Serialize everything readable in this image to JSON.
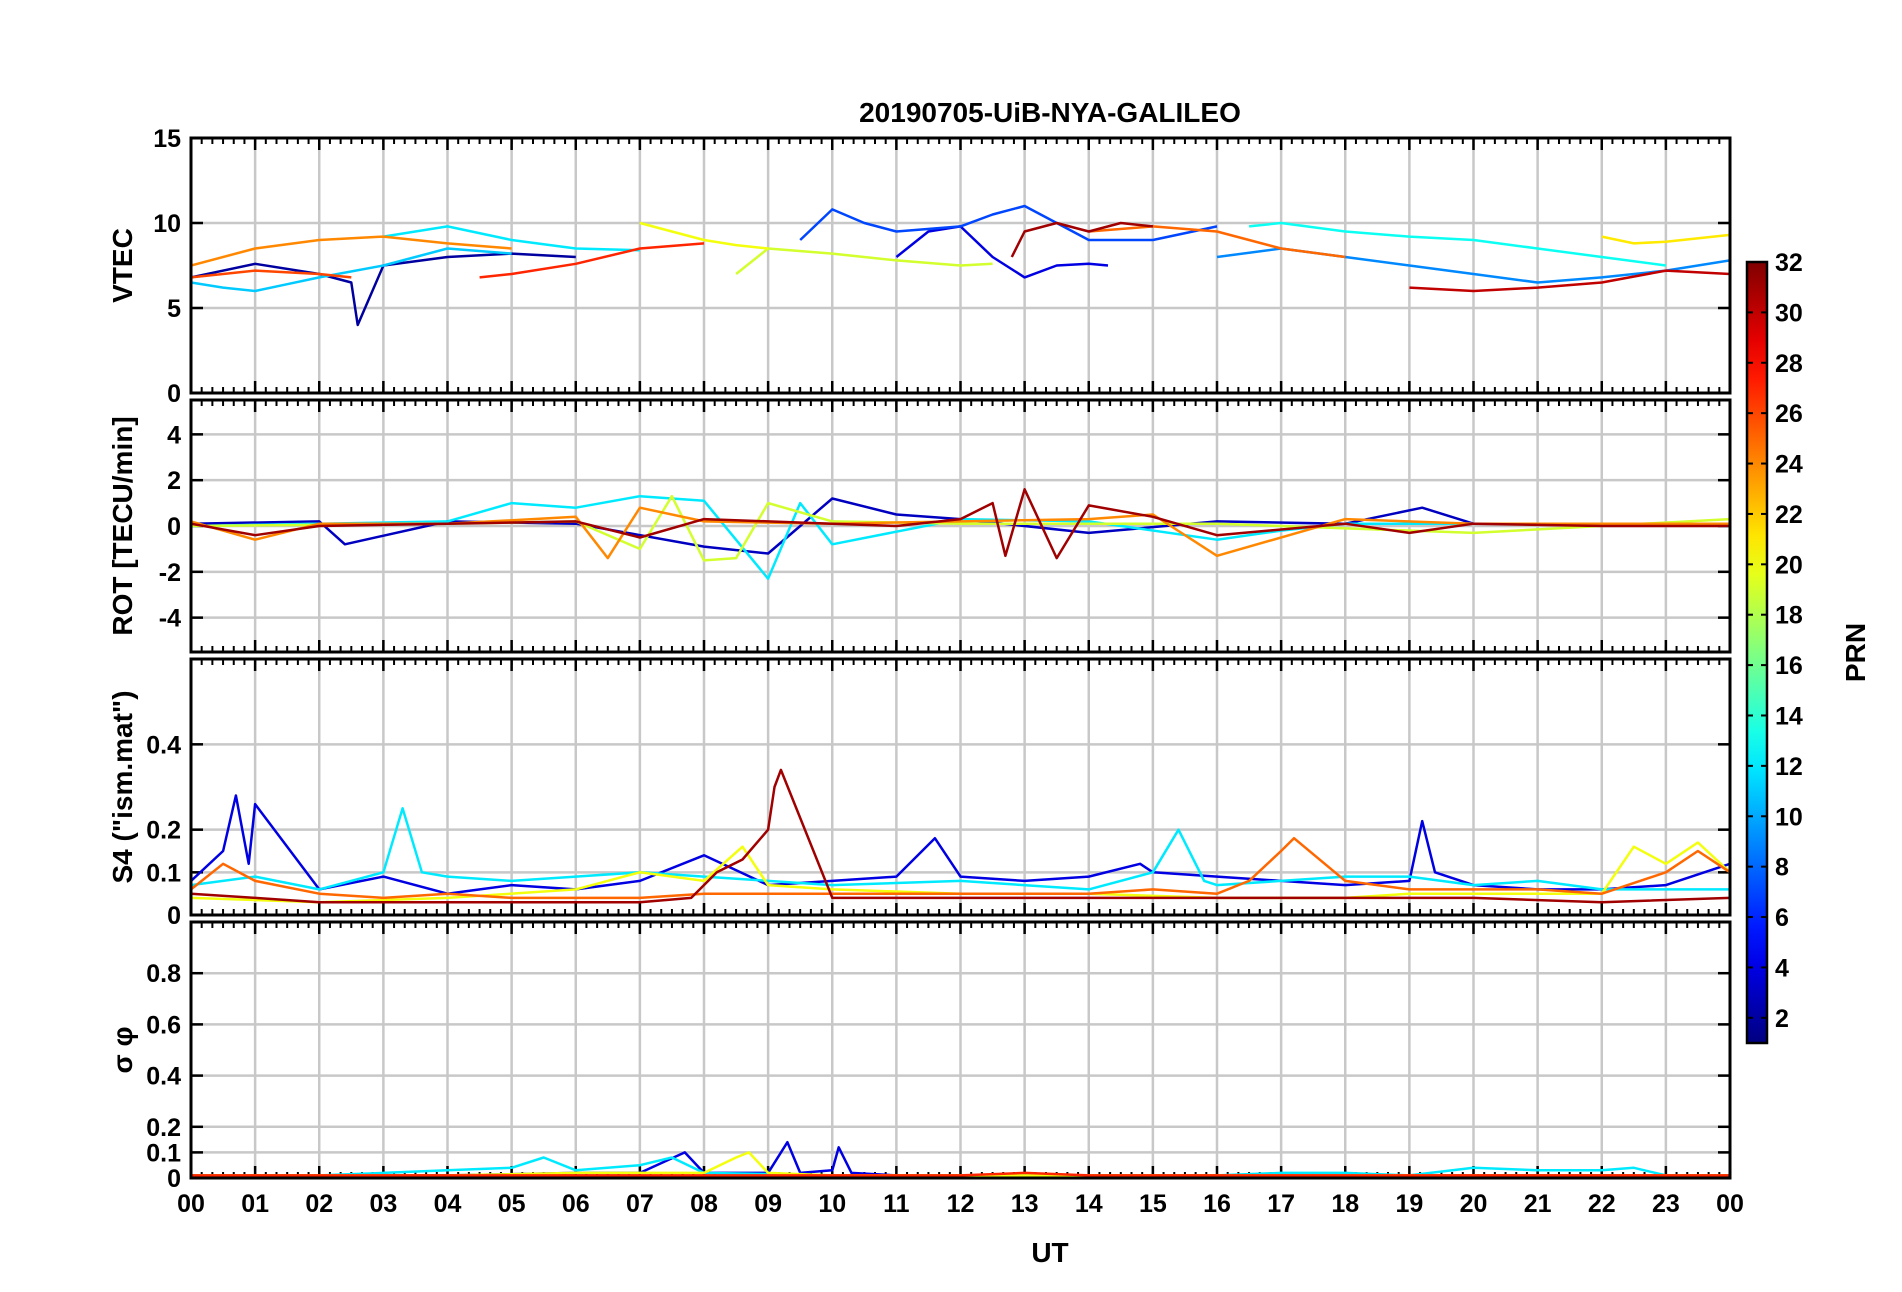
{
  "figure": {
    "title": "20190705-UiB-NYA-GALILEO",
    "xlabel": "UT",
    "x_ticks": [
      "00",
      "01",
      "02",
      "03",
      "04",
      "05",
      "06",
      "07",
      "08",
      "09",
      "10",
      "11",
      "12",
      "13",
      "14",
      "15",
      "16",
      "17",
      "18",
      "19",
      "20",
      "21",
      "22",
      "23",
      "00"
    ]
  },
  "colorbar": {
    "label": "PRN",
    "range": [
      1,
      32
    ],
    "ticks": [
      2,
      4,
      6,
      8,
      10,
      12,
      14,
      16,
      18,
      20,
      22,
      24,
      26,
      28,
      30,
      32
    ],
    "tick_labels": [
      "2",
      "4",
      "6",
      "8",
      "10",
      "12",
      "14",
      "16",
      "18",
      "20",
      "22",
      "24",
      "26",
      "28",
      "30",
      "32"
    ],
    "colormap": "jet"
  },
  "chart_data": [
    {
      "type": "line",
      "ylabel": "VTEC",
      "xlim": [
        0,
        24
      ],
      "ylim": [
        0,
        15
      ],
      "y_ticks": [
        0,
        5,
        10,
        15
      ],
      "y_tick_labels": [
        "0",
        "5",
        "10",
        "15"
      ],
      "grid": true,
      "color_by": "PRN",
      "series": [
        {
          "prn": 2,
          "x": [
            0,
            1,
            2,
            2.5,
            2.6,
            3,
            4,
            5,
            6
          ],
          "y": [
            6.8,
            7.6,
            7.0,
            6.5,
            4.0,
            7.5,
            8.0,
            8.2,
            8.0
          ]
        },
        {
          "prn": 4,
          "x": [
            11,
            11.5,
            12,
            12.5,
            13,
            13.5,
            14,
            14.3
          ],
          "y": [
            8.0,
            9.5,
            9.8,
            8.0,
            6.8,
            7.5,
            7.6,
            7.5
          ]
        },
        {
          "prn": 7,
          "x": [
            9.5,
            10,
            10.5,
            11,
            12,
            12.5,
            13,
            14,
            15,
            16
          ],
          "y": [
            9.0,
            10.8,
            10.0,
            9.5,
            9.8,
            10.5,
            11.0,
            9.0,
            9.0,
            9.8
          ]
        },
        {
          "prn": 9,
          "x": [
            16,
            17,
            18,
            19,
            20,
            21,
            22,
            23,
            24
          ],
          "y": [
            8.0,
            8.5,
            8.0,
            7.5,
            7.0,
            6.5,
            6.8,
            7.2,
            7.8
          ]
        },
        {
          "prn": 11,
          "x": [
            0,
            0.5,
            1,
            1.5,
            2,
            3,
            3.5,
            4,
            5
          ],
          "y": [
            6.5,
            6.2,
            6.0,
            6.4,
            6.8,
            7.5,
            8.0,
            8.5,
            8.2
          ]
        },
        {
          "prn": 12,
          "x": [
            3,
            3.5,
            4,
            5,
            6,
            7
          ],
          "y": [
            9.2,
            9.5,
            9.8,
            9.0,
            8.5,
            8.4
          ]
        },
        {
          "prn": 13,
          "x": [
            16.5,
            17,
            18,
            19,
            20,
            21,
            22,
            23
          ],
          "y": [
            9.8,
            10.0,
            9.5,
            9.2,
            9.0,
            8.5,
            8.0,
            7.5
          ]
        },
        {
          "prn": 19,
          "x": [
            8.5,
            9,
            10,
            11,
            12,
            12.5
          ],
          "y": [
            7.0,
            8.5,
            8.2,
            7.8,
            7.5,
            7.6
          ]
        },
        {
          "prn": 20,
          "x": [
            7,
            7.5,
            8,
            8.5,
            9
          ],
          "y": [
            10.0,
            9.5,
            9.0,
            8.7,
            8.5
          ]
        },
        {
          "prn": 21,
          "x": [
            22,
            22.5,
            23,
            24
          ],
          "y": [
            9.2,
            8.8,
            8.9,
            9.3
          ]
        },
        {
          "prn": 24,
          "x": [
            0,
            1,
            2,
            3,
            4,
            5
          ],
          "y": [
            7.5,
            8.5,
            9.0,
            9.2,
            8.8,
            8.5
          ]
        },
        {
          "prn": 25,
          "x": [
            14,
            15,
            16,
            17,
            18
          ],
          "y": [
            9.5,
            9.8,
            9.5,
            8.5,
            8.0
          ]
        },
        {
          "prn": 26,
          "x": [
            0,
            1,
            2,
            2.5
          ],
          "y": [
            6.8,
            7.2,
            7.0,
            6.8
          ]
        },
        {
          "prn": 27,
          "x": [
            4.5,
            5,
            6,
            7,
            8
          ],
          "y": [
            6.8,
            7.0,
            7.6,
            8.5,
            8.8
          ]
        },
        {
          "prn": 30,
          "x": [
            19,
            20,
            21,
            22,
            23,
            24
          ],
          "y": [
            6.2,
            6.0,
            6.2,
            6.5,
            7.2,
            7.0
          ]
        },
        {
          "prn": 31,
          "x": [
            12.8,
            13,
            13.5,
            14,
            14.5,
            15
          ],
          "y": [
            8.0,
            9.5,
            10.0,
            9.5,
            10.0,
            9.8
          ]
        }
      ]
    },
    {
      "type": "line",
      "ylabel": "ROT [TECU/min]",
      "xlim": [
        0,
        24
      ],
      "ylim": [
        -5.5,
        5.5
      ],
      "y_ticks": [
        -4,
        -2,
        0,
        2,
        4
      ],
      "y_tick_labels": [
        "-4",
        "-2",
        "0",
        "2",
        "4"
      ],
      "grid": true,
      "color_by": "PRN",
      "series": [
        {
          "prn": 3,
          "x": [
            0,
            2,
            2.4,
            4,
            6,
            8,
            9,
            10,
            11,
            12,
            14,
            16,
            18,
            19.2,
            20,
            22,
            24
          ],
          "y": [
            0.1,
            0.2,
            -0.8,
            0.2,
            0.1,
            -0.9,
            -1.2,
            1.2,
            0.5,
            0.3,
            -0.3,
            0.2,
            0.1,
            0.8,
            0.1,
            0.1,
            0.0
          ]
        },
        {
          "prn": 12,
          "x": [
            0,
            2,
            4,
            5,
            6,
            7,
            8,
            9,
            9.5,
            10,
            12,
            14,
            16,
            17,
            18,
            20,
            22,
            24
          ],
          "y": [
            0.0,
            0.1,
            0.2,
            1.0,
            0.8,
            1.3,
            1.1,
            -2.3,
            1.0,
            -0.8,
            0.3,
            0.2,
            -0.6,
            -0.2,
            0.1,
            0.1,
            0.1,
            0.0
          ]
        },
        {
          "prn": 19,
          "x": [
            0,
            4,
            6,
            7,
            7.5,
            8,
            8.5,
            9,
            10,
            12,
            16,
            20,
            24
          ],
          "y": [
            0.0,
            0.1,
            0.2,
            -1.0,
            1.3,
            -1.5,
            -1.4,
            1.0,
            0.2,
            0.1,
            0.1,
            -0.3,
            0.3
          ]
        },
        {
          "prn": 24,
          "x": [
            0,
            1,
            2,
            4,
            6,
            6.5,
            7,
            8,
            10,
            12,
            14,
            15,
            16,
            18,
            20,
            22,
            24
          ],
          "y": [
            0.2,
            -0.6,
            0.1,
            0.1,
            0.4,
            -1.4,
            0.8,
            0.2,
            0.1,
            0.2,
            0.3,
            0.5,
            -1.3,
            0.3,
            0.1,
            0.1,
            0.1
          ]
        },
        {
          "prn": 31,
          "x": [
            0,
            1,
            2,
            4,
            6,
            7,
            8,
            9,
            10,
            11,
            12,
            12.5,
            12.7,
            13,
            13.5,
            14,
            15,
            16,
            18,
            19,
            20,
            22,
            24
          ],
          "y": [
            0.1,
            -0.4,
            0.0,
            0.1,
            0.2,
            -0.5,
            0.3,
            0.2,
            0.1,
            0.0,
            0.3,
            1.0,
            -1.3,
            1.6,
            -1.4,
            0.9,
            0.4,
            -0.4,
            0.1,
            -0.3,
            0.1,
            0.0,
            0.0
          ]
        }
      ]
    },
    {
      "type": "line",
      "ylabel": "S4 (\"ism.mat\")",
      "xlim": [
        0,
        24
      ],
      "ylim": [
        0,
        0.6
      ],
      "y_ticks": [
        0,
        0.1,
        0.2,
        0.4
      ],
      "y_tick_labels": [
        "0",
        "0.1",
        "0.2",
        "0.4"
      ],
      "grid": true,
      "color_by": "PRN",
      "series": [
        {
          "prn": 4,
          "x": [
            0,
            0.5,
            0.7,
            0.9,
            1,
            2,
            3,
            4,
            5,
            6,
            7,
            8,
            9,
            10,
            11,
            11.6,
            12,
            13,
            14,
            14.8,
            15,
            16,
            17,
            18,
            19,
            19.2,
            19.4,
            20,
            21,
            22,
            23,
            24
          ],
          "y": [
            0.08,
            0.15,
            0.28,
            0.12,
            0.26,
            0.06,
            0.09,
            0.05,
            0.07,
            0.06,
            0.08,
            0.14,
            0.07,
            0.08,
            0.09,
            0.18,
            0.09,
            0.08,
            0.09,
            0.12,
            0.1,
            0.09,
            0.08,
            0.07,
            0.08,
            0.22,
            0.1,
            0.07,
            0.06,
            0.06,
            0.07,
            0.12
          ]
        },
        {
          "prn": 12,
          "x": [
            0,
            1,
            2,
            3,
            3.3,
            3.6,
            4,
            5,
            6,
            7,
            8,
            9,
            10,
            12,
            14,
            15,
            15.4,
            15.8,
            16,
            17,
            18,
            19,
            20,
            21,
            22,
            23,
            24
          ],
          "y": [
            0.07,
            0.09,
            0.06,
            0.1,
            0.25,
            0.1,
            0.09,
            0.08,
            0.09,
            0.1,
            0.09,
            0.08,
            0.07,
            0.08,
            0.06,
            0.1,
            0.2,
            0.08,
            0.07,
            0.08,
            0.09,
            0.09,
            0.07,
            0.08,
            0.06,
            0.06,
            0.06
          ]
        },
        {
          "prn": 20,
          "x": [
            0,
            2,
            4,
            6,
            7,
            8,
            8.6,
            9,
            10,
            12,
            14,
            16,
            18,
            19,
            20,
            22,
            22.5,
            23,
            23.5,
            24
          ],
          "y": [
            0.04,
            0.03,
            0.04,
            0.06,
            0.1,
            0.08,
            0.16,
            0.07,
            0.06,
            0.05,
            0.05,
            0.04,
            0.04,
            0.05,
            0.05,
            0.05,
            0.16,
            0.12,
            0.17,
            0.1
          ]
        },
        {
          "prn": 25,
          "x": [
            0,
            0.5,
            1,
            2,
            3,
            4,
            5,
            6,
            7,
            8,
            10,
            12,
            14,
            15,
            16,
            16.5,
            17,
            17.2,
            18,
            19,
            20,
            21,
            22,
            23,
            23.5,
            24
          ],
          "y": [
            0.06,
            0.12,
            0.08,
            0.05,
            0.04,
            0.05,
            0.04,
            0.04,
            0.04,
            0.05,
            0.05,
            0.05,
            0.05,
            0.06,
            0.05,
            0.08,
            0.15,
            0.18,
            0.08,
            0.06,
            0.06,
            0.06,
            0.05,
            0.1,
            0.15,
            0.1
          ]
        },
        {
          "prn": 31,
          "x": [
            0,
            1,
            2,
            4,
            6,
            7,
            7.8,
            8.2,
            8.6,
            9,
            9.1,
            9.2,
            10,
            12,
            14,
            16,
            18,
            20,
            22,
            24
          ],
          "y": [
            0.05,
            0.04,
            0.03,
            0.03,
            0.03,
            0.03,
            0.04,
            0.1,
            0.13,
            0.2,
            0.3,
            0.34,
            0.04,
            0.04,
            0.04,
            0.04,
            0.04,
            0.04,
            0.03,
            0.04
          ]
        }
      ]
    },
    {
      "type": "line",
      "ylabel": "σ φ",
      "xlim": [
        0,
        24
      ],
      "ylim": [
        0,
        1
      ],
      "y_ticks": [
        0,
        0.1,
        0.2,
        0.4,
        0.6,
        0.8
      ],
      "y_tick_labels": [
        "0",
        "0.1",
        "0.2",
        "0.4",
        "0.6",
        "0.8"
      ],
      "grid": true,
      "color_by": "PRN",
      "series": [
        {
          "prn": 4,
          "x": [
            0,
            2,
            4,
            6,
            7,
            7.7,
            8,
            9,
            9.3,
            9.5,
            10,
            10.1,
            10.3,
            11,
            12,
            14,
            16,
            18,
            20,
            22,
            24
          ],
          "y": [
            0.01,
            0.01,
            0.01,
            0.02,
            0.02,
            0.1,
            0.02,
            0.02,
            0.14,
            0.02,
            0.03,
            0.12,
            0.02,
            0.01,
            0.01,
            0.01,
            0.01,
            0.01,
            0.01,
            0.01,
            0.01
          ]
        },
        {
          "prn": 12,
          "x": [
            0,
            2,
            3,
            4,
            5,
            5.5,
            6,
            7,
            7.5,
            8,
            10,
            12,
            14,
            16,
            17,
            18,
            19,
            20,
            21,
            22,
            22.5,
            23,
            24
          ],
          "y": [
            0.01,
            0.01,
            0.02,
            0.03,
            0.04,
            0.08,
            0.03,
            0.05,
            0.08,
            0.02,
            0.01,
            0.01,
            0.01,
            0.01,
            0.02,
            0.02,
            0.01,
            0.04,
            0.03,
            0.03,
            0.04,
            0.01,
            0.01
          ]
        },
        {
          "prn": 20,
          "x": [
            0,
            4,
            6,
            8,
            8.5,
            8.7,
            9,
            10,
            12,
            16,
            20,
            24
          ],
          "y": [
            0.01,
            0.01,
            0.02,
            0.02,
            0.08,
            0.1,
            0.02,
            0.01,
            0.01,
            0.01,
            0.01,
            0.01
          ]
        },
        {
          "prn": 27,
          "x": [
            0,
            2,
            4,
            6,
            8,
            10,
            12,
            13,
            14,
            16,
            18,
            20,
            22,
            24
          ],
          "y": [
            0.01,
            0.01,
            0.01,
            0.01,
            0.01,
            0.01,
            0.01,
            0.02,
            0.01,
            0.01,
            0.01,
            0.01,
            0.01,
            0.01
          ]
        }
      ]
    }
  ]
}
